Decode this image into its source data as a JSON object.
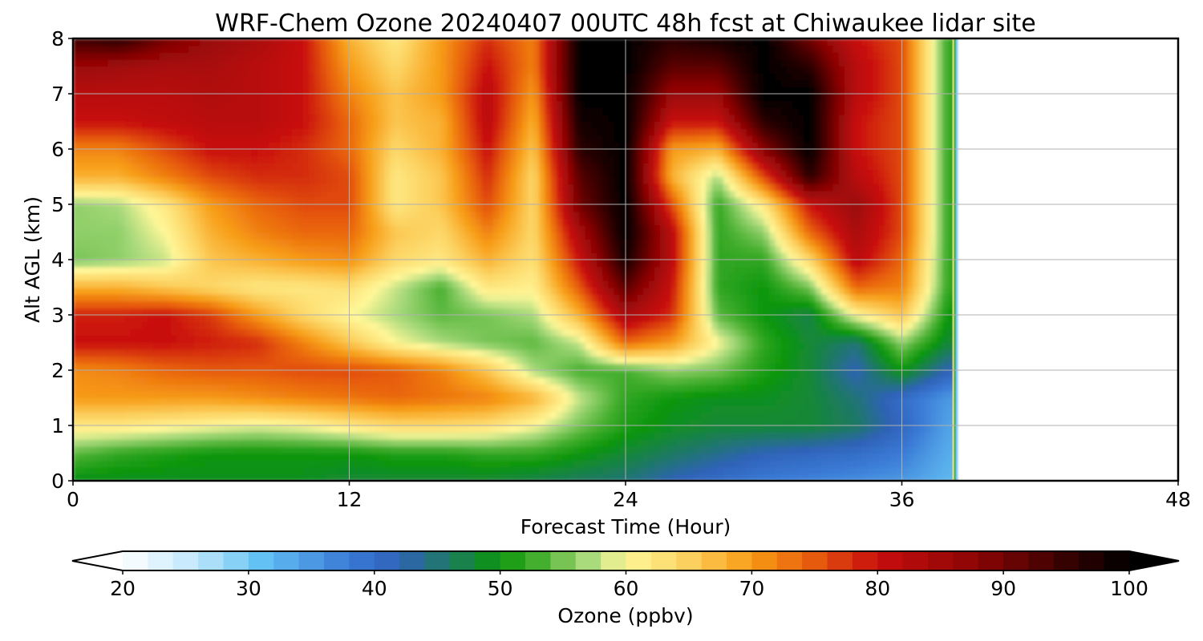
{
  "chart_data": {
    "type": "heatmap",
    "title": "WRF-Chem Ozone  20240407 00UTC 48h fcst at Chiwaukee lidar site",
    "xlabel": "Forecast Time (Hour)",
    "ylabel": "Alt AGL (km)",
    "xlim": [
      0,
      48
    ],
    "ylim": [
      0,
      8
    ],
    "x_ticks": [
      0,
      12,
      24,
      36,
      48
    ],
    "y_ticks": [
      0,
      1,
      2,
      3,
      4,
      5,
      6,
      7,
      8
    ],
    "grid": true,
    "data_end_hour": 38.3,
    "colorbar": {
      "label": "Ozone  (ppbv)",
      "range": [
        20,
        100
      ],
      "step": 2,
      "ticks": [
        20,
        30,
        40,
        50,
        60,
        70,
        80,
        90,
        100
      ],
      "extend": "both",
      "orientation": "horizontal",
      "placement": "bottom",
      "color_stops": [
        {
          "v": 20,
          "c": "#ffffff"
        },
        {
          "v": 26,
          "c": "#bde6fb"
        },
        {
          "v": 31,
          "c": "#63c1f3"
        },
        {
          "v": 38,
          "c": "#3a7ad6"
        },
        {
          "v": 42,
          "c": "#2f62b8"
        },
        {
          "v": 46,
          "c": "#1d7a60"
        },
        {
          "v": 50,
          "c": "#0c960c"
        },
        {
          "v": 53,
          "c": "#44ae2e"
        },
        {
          "v": 57,
          "c": "#a9da7c"
        },
        {
          "v": 60,
          "c": "#fff799"
        },
        {
          "v": 65,
          "c": "#fcd05e"
        },
        {
          "v": 70,
          "c": "#f79b14"
        },
        {
          "v": 75,
          "c": "#e65a0e"
        },
        {
          "v": 80,
          "c": "#c80d0d"
        },
        {
          "v": 88,
          "c": "#8a0505"
        },
        {
          "v": 96,
          "c": "#2a0000"
        },
        {
          "v": 100,
          "c": "#000000"
        }
      ]
    },
    "ozone_ppbv": {
      "hours": [
        0,
        2,
        4,
        6,
        8,
        10,
        12,
        14,
        16,
        18,
        20,
        22,
        24,
        26,
        28,
        30,
        32,
        34,
        36,
        38
      ],
      "altitudes_km": [
        0,
        0.5,
        1,
        1.5,
        2,
        2.5,
        3,
        3.5,
        4,
        4.5,
        5,
        5.5,
        6,
        6.5,
        7,
        7.5,
        8
      ],
      "values": [
        [
          49,
          49,
          49,
          49,
          49,
          49,
          48,
          48,
          48,
          48,
          47,
          46,
          45,
          42,
          40,
          38,
          37,
          36,
          35,
          32
        ],
        [
          54,
          52,
          51,
          50,
          50,
          50,
          50,
          51,
          51,
          52,
          52,
          50,
          48,
          46,
          44,
          42,
          41,
          40,
          38,
          33
        ],
        [
          62,
          62,
          61,
          60,
          59,
          60,
          62,
          64,
          64,
          63,
          60,
          55,
          51,
          49,
          48,
          48,
          48,
          46,
          41,
          34
        ],
        [
          70,
          70,
          70,
          70,
          71,
          72,
          73,
          74,
          73,
          72,
          68,
          58,
          52,
          50,
          49,
          49,
          48,
          45,
          40,
          35
        ],
        [
          71,
          72,
          74,
          75,
          75,
          76,
          76,
          75,
          72,
          66,
          57,
          53,
          53,
          56,
          55,
          51,
          48,
          42,
          50,
          42
        ],
        [
          80,
          80,
          80,
          79,
          78,
          72,
          66,
          60,
          57,
          55,
          54,
          58,
          74,
          70,
          60,
          52,
          48,
          45,
          56,
          48
        ],
        [
          79,
          79,
          80,
          77,
          70,
          64,
          60,
          57,
          54,
          55,
          57,
          68,
          84,
          78,
          54,
          50,
          47,
          60,
          66,
          50
        ],
        [
          68,
          68,
          66,
          64,
          62,
          62,
          63,
          58,
          53,
          62,
          61,
          75,
          92,
          80,
          52,
          50,
          55,
          74,
          72,
          52
        ],
        [
          55,
          56,
          58,
          66,
          68,
          70,
          71,
          64,
          62,
          68,
          63,
          80,
          98,
          82,
          52,
          52,
          64,
          82,
          74,
          52
        ],
        [
          56,
          56,
          60,
          68,
          72,
          74,
          74,
          66,
          64,
          72,
          64,
          84,
          100,
          82,
          52,
          56,
          74,
          84,
          76,
          52
        ],
        [
          56,
          57,
          62,
          70,
          74,
          76,
          76,
          62,
          66,
          76,
          64,
          90,
          100,
          76,
          52,
          62,
          80,
          86,
          76,
          52
        ],
        [
          68,
          68,
          72,
          76,
          78,
          78,
          76,
          62,
          66,
          78,
          64,
          92,
          100,
          68,
          57,
          76,
          96,
          82,
          76,
          52
        ],
        [
          72,
          72,
          76,
          80,
          80,
          78,
          74,
          64,
          68,
          80,
          66,
          96,
          100,
          70,
          68,
          88,
          100,
          80,
          76,
          52
        ],
        [
          80,
          80,
          81,
          82,
          82,
          80,
          74,
          66,
          68,
          82,
          68,
          98,
          100,
          80,
          80,
          96,
          100,
          80,
          76,
          52
        ],
        [
          82,
          82,
          82,
          83,
          82,
          80,
          72,
          66,
          70,
          82,
          70,
          100,
          100,
          86,
          86,
          100,
          100,
          82,
          76,
          52
        ],
        [
          86,
          85,
          84,
          84,
          82,
          80,
          70,
          64,
          70,
          80,
          72,
          100,
          100,
          92,
          92,
          100,
          96,
          82,
          76,
          52
        ],
        [
          94,
          96,
          90,
          86,
          84,
          80,
          68,
          62,
          70,
          78,
          72,
          100,
          100,
          96,
          98,
          100,
          90,
          80,
          76,
          52
        ]
      ]
    }
  }
}
